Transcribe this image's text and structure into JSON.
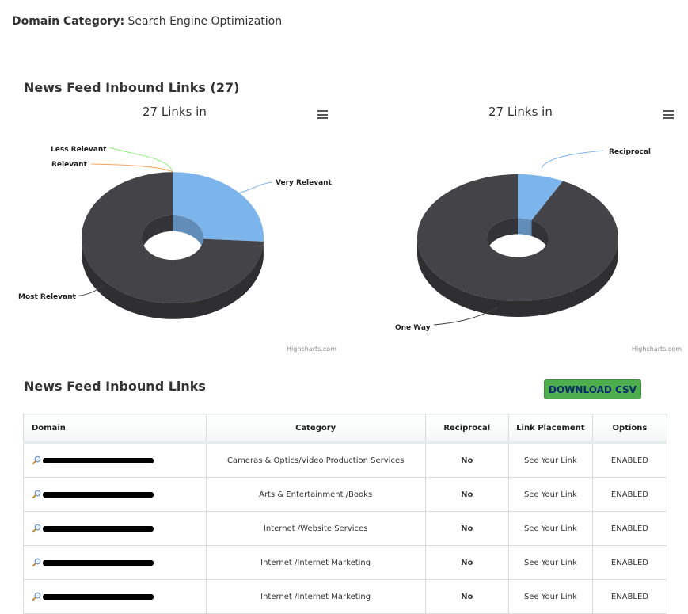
{
  "domain_category": {
    "label": "Domain Category:",
    "value": "Search Engine Optimization"
  },
  "inbound_title": "News Feed Inbound Links (27)",
  "charts": {
    "left": {
      "title": "27 Links in",
      "credit": "Highcharts.com",
      "menu_icon": "hamburger-menu-icon"
    },
    "right": {
      "title": "27 Links in",
      "credit": "Highcharts.com",
      "menu_icon": "hamburger-menu-icon"
    }
  },
  "chart_data": [
    {
      "type": "pie",
      "title": "27 Links in",
      "slices": [
        {
          "name": "Very Relevant",
          "value": 7,
          "color": "#7cb5ec"
        },
        {
          "name": "Less Relevant",
          "value": 0,
          "color": "#90ed7d"
        },
        {
          "name": "Relevant",
          "value": 0,
          "color": "#f7a35c"
        },
        {
          "name": "Most Relevant",
          "value": 20,
          "color": "#434348"
        }
      ]
    },
    {
      "type": "pie",
      "title": "27 Links in",
      "slices": [
        {
          "name": "Reciprocal",
          "value": 2,
          "color": "#7cb5ec"
        },
        {
          "name": "One Way",
          "value": 25,
          "color": "#434348"
        }
      ]
    }
  ],
  "table_title": "News Feed Inbound Links",
  "download_label": "DOWNLOAD CSV",
  "table": {
    "headers": [
      "Domain",
      "Category",
      "Reciprocal",
      "Link Placement",
      "Options"
    ],
    "rows": [
      {
        "category": "Cameras & Optics/Video Production Services",
        "reciprocal": "No",
        "placement": "See Your Link",
        "option": "ENABLED"
      },
      {
        "category": "Arts & Entertainment /Books",
        "reciprocal": "No",
        "placement": "See Your Link",
        "option": "ENABLED"
      },
      {
        "category": "Internet /Website Services",
        "reciprocal": "No",
        "placement": "See Your Link",
        "option": "ENABLED"
      },
      {
        "category": "Internet /Internet Marketing",
        "reciprocal": "No",
        "placement": "See Your Link",
        "option": "ENABLED"
      },
      {
        "category": "Internet /Internet Marketing",
        "reciprocal": "No",
        "placement": "See Your Link",
        "option": "ENABLED"
      }
    ]
  },
  "colors": {
    "accent_green": "#4cae4c",
    "enabled": "#1e8a1e",
    "pie_blue": "#7cb5ec",
    "pie_dark": "#434348"
  }
}
